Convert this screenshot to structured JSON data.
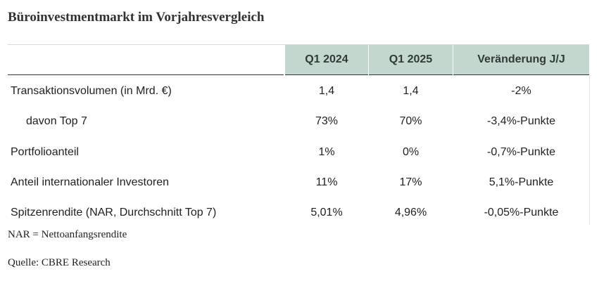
{
  "title": "Büroinvestmentmarkt im Vorjahresvergleich",
  "table": {
    "columns": [
      "Q1 2024",
      "Q1 2025",
      "Veränderung J/J"
    ],
    "rows": [
      {
        "label": "Transaktionsvolumen (in Mrd. €)",
        "q1_2024": "1,4",
        "q1_2025": "1,4",
        "change": "-2%",
        "indent": false
      },
      {
        "label": "davon Top 7",
        "q1_2024": "73%",
        "q1_2025": "70%",
        "change": "-3,4%-Punkte",
        "indent": true
      },
      {
        "label": "Portfolioanteil",
        "q1_2024": "1%",
        "q1_2025": "0%",
        "change": "-0,7%-Punkte",
        "indent": false
      },
      {
        "label": "Anteil internationaler Investoren",
        "q1_2024": "11%",
        "q1_2025": "17%",
        "change": "5,1%-Punkte",
        "indent": false
      },
      {
        "label": "Spitzenrendite (NAR, Durchschnitt Top 7)",
        "q1_2024": "5,01%",
        "q1_2025": "4,96%",
        "change": "-0,05%-Punkte",
        "indent": false
      }
    ]
  },
  "footnote": "NAR = Nettoanfangsrendite",
  "source": "Quelle: CBRE Research",
  "colors": {
    "header_bg": "#c4d7cf",
    "header_text": "#2f3b36",
    "header_rule": "#333333"
  }
}
